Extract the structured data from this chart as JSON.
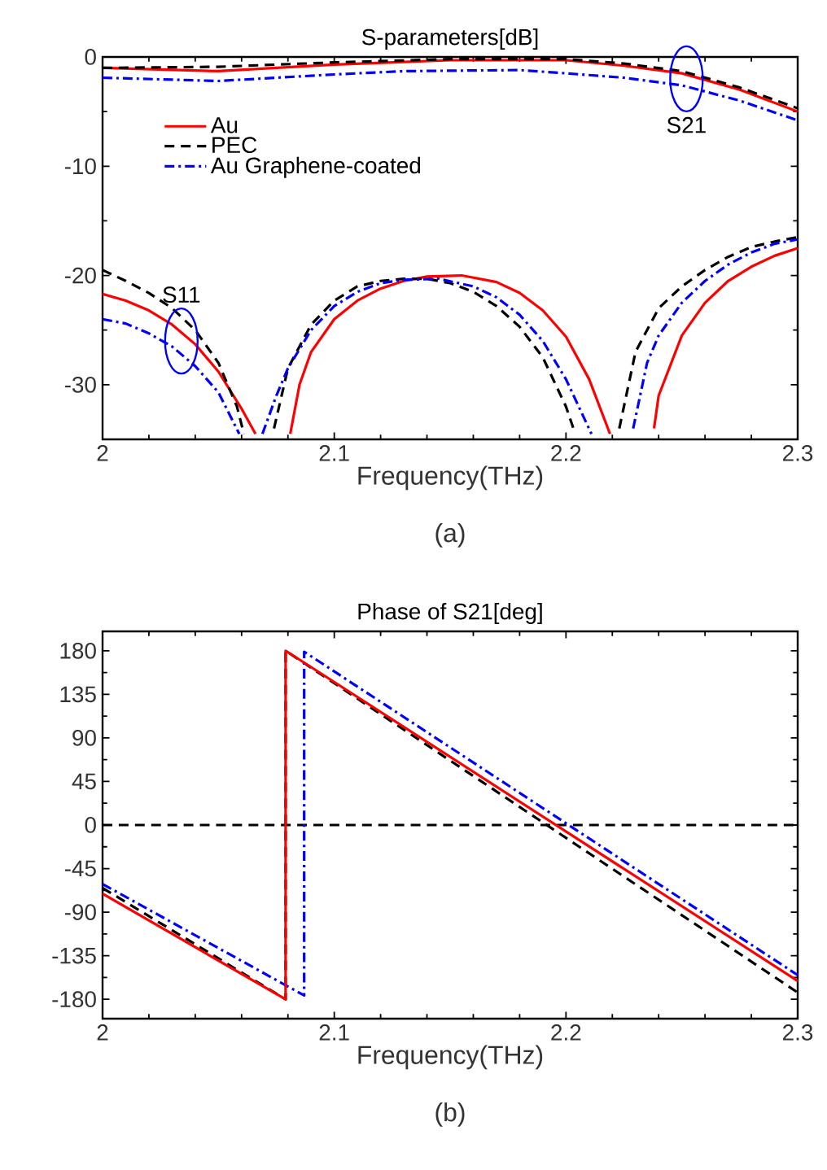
{
  "chart_data": [
    {
      "type": "line",
      "title": "S-parameters[dB]",
      "xlabel": "Frequency(THz)",
      "xlim": [
        2,
        2.3
      ],
      "xticks": [
        2,
        2.1,
        2.2,
        2.3
      ],
      "ylim": [
        -35,
        0
      ],
      "yticks": [
        -30,
        -20,
        -10,
        0
      ],
      "legend": "top left",
      "series": [
        {
          "name": "Au",
          "color": "#ff0000",
          "line_style": "solid",
          "x": [
            2.0,
            2.05,
            2.1,
            2.15,
            2.2,
            2.225,
            2.25,
            2.275,
            2.3
          ],
          "values": [
            -1.0,
            -1.3,
            -0.7,
            -0.3,
            -0.3,
            -0.8,
            -1.5,
            -3.0,
            -5.0
          ]
        },
        {
          "name": "PEC",
          "color": "#000000",
          "line_style": "dashed",
          "x": [
            2.0,
            2.05,
            2.1,
            2.15,
            2.2,
            2.225,
            2.25,
            2.275,
            2.3
          ],
          "values": [
            -1.0,
            -0.9,
            -0.5,
            -0.2,
            -0.2,
            -0.6,
            -1.3,
            -2.8,
            -4.7
          ]
        },
        {
          "name": "Au Graphene-coated",
          "color": "#0000ff",
          "line_style": "dashdot",
          "x": [
            2.0,
            2.05,
            2.1,
            2.13,
            2.18,
            2.2,
            2.225,
            2.25,
            2.275,
            2.3
          ],
          "values": [
            -1.9,
            -2.2,
            -1.6,
            -1.3,
            -1.2,
            -1.5,
            -1.9,
            -2.6,
            -4.0,
            -5.8
          ]
        },
        {
          "color": "#ff0000",
          "line_style": "solid",
          "x": [
            2.0,
            2.01,
            2.02,
            2.03,
            2.04,
            2.05,
            2.06,
            2.066,
            2.075,
            2.081,
            2.085,
            2.09,
            2.1,
            2.11,
            2.12,
            2.13,
            2.14,
            2.155,
            2.17,
            2.18,
            2.19,
            2.2,
            2.21,
            2.219,
            2.23,
            2.238,
            2.24,
            2.25,
            2.26,
            2.27,
            2.28,
            2.29,
            2.3
          ],
          "values": [
            -21.7,
            -22.3,
            -23.2,
            -24.5,
            -26.3,
            -28.8,
            -32.2,
            -34.5,
            null,
            -34.5,
            -30,
            -27,
            -24,
            -22.3,
            -21.2,
            -20.5,
            -20.1,
            -20,
            -20.6,
            -21.6,
            -23.2,
            -25.6,
            -29.5,
            -34.5,
            null,
            -34,
            -31,
            -25.5,
            -22.5,
            -20.5,
            -19.2,
            -18.2,
            -17.5
          ]
        },
        {
          "color": "#000000",
          "line_style": "dashed",
          "x": [
            2.0,
            2.01,
            2.02,
            2.03,
            2.04,
            2.05,
            2.058,
            2.061,
            2.068,
            2.074,
            2.08,
            2.09,
            2.1,
            2.11,
            2.12,
            2.13,
            2.14,
            2.15,
            2.16,
            2.17,
            2.18,
            2.19,
            2.2,
            2.204,
            2.215,
            2.223,
            2.23,
            2.24,
            2.25,
            2.26,
            2.27,
            2.28,
            2.29,
            2.3
          ],
          "values": [
            -19.5,
            -20.5,
            -21.6,
            -23,
            -25,
            -28,
            -32,
            -34.5,
            null,
            -34,
            -28.5,
            -24.5,
            -22.3,
            -21,
            -20.5,
            -20.3,
            -20.3,
            -20.7,
            -21.5,
            -22.8,
            -24.7,
            -27.5,
            -32,
            -34.5,
            null,
            -34,
            -27,
            -23,
            -21,
            -19.5,
            -18.3,
            -17.4,
            -16.9,
            -16.5
          ]
        },
        {
          "color": "#0000ff",
          "line_style": "dashdot",
          "x": [
            2.0,
            2.01,
            2.02,
            2.03,
            2.04,
            2.05,
            2.059,
            2.064,
            2.069,
            2.075,
            2.08,
            2.09,
            2.1,
            2.11,
            2.12,
            2.13,
            2.145,
            2.16,
            2.17,
            2.18,
            2.19,
            2.2,
            2.211,
            2.22,
            2.229,
            2.235,
            2.24,
            2.25,
            2.26,
            2.27,
            2.28,
            2.29,
            2.3
          ],
          "values": [
            -24,
            -24.4,
            -25.3,
            -26.5,
            -28.3,
            -30.7,
            -34.5,
            null,
            -34.5,
            -31,
            -28.5,
            -25,
            -22.8,
            -21.5,
            -20.7,
            -20.4,
            -20.3,
            -21,
            -22,
            -23.6,
            -26,
            -29.5,
            -34.5,
            null,
            -34,
            -28,
            -25.5,
            -22.5,
            -20.5,
            -19,
            -17.9,
            -17.1,
            -16.7
          ]
        }
      ],
      "annotations": [
        {
          "text": "S11",
          "x": 2.034,
          "y": -26
        },
        {
          "text": "S21",
          "x": 2.252,
          "y": -2
        },
        "(a)"
      ]
    },
    {
      "type": "line",
      "title": "Phase of S21[deg]",
      "xlabel": "Frequency(THz)",
      "xlim": [
        2,
        2.3
      ],
      "xticks": [
        2,
        2.1,
        2.2,
        2.3
      ],
      "ylim": [
        -200,
        200
      ],
      "yticks": [
        -180,
        -135,
        -90,
        -45,
        0,
        45,
        90,
        135,
        180
      ],
      "series": [
        {
          "color": "#000000",
          "line_style": "dashed",
          "x": [
            2.0,
            2.079,
            2.079,
            2.3
          ],
          "values": [
            -65,
            -180,
            180,
            -173
          ]
        },
        {
          "color": "#0000ff",
          "line_style": "dashdot",
          "x": [
            2.0,
            2.087,
            2.087,
            2.3
          ],
          "values": [
            -61,
            -176,
            179,
            -155
          ]
        },
        {
          "color": "#ff0000",
          "line_style": "solid",
          "x": [
            2.0,
            2.079,
            2.079,
            2.3
          ],
          "values": [
            -71,
            -180,
            180,
            -161
          ]
        }
      ],
      "ref_lines": [
        {
          "axis": "y",
          "value": 0,
          "color": "#000000",
          "line_style": "dashed"
        }
      ],
      "annotations": [
        "(b)"
      ]
    }
  ]
}
